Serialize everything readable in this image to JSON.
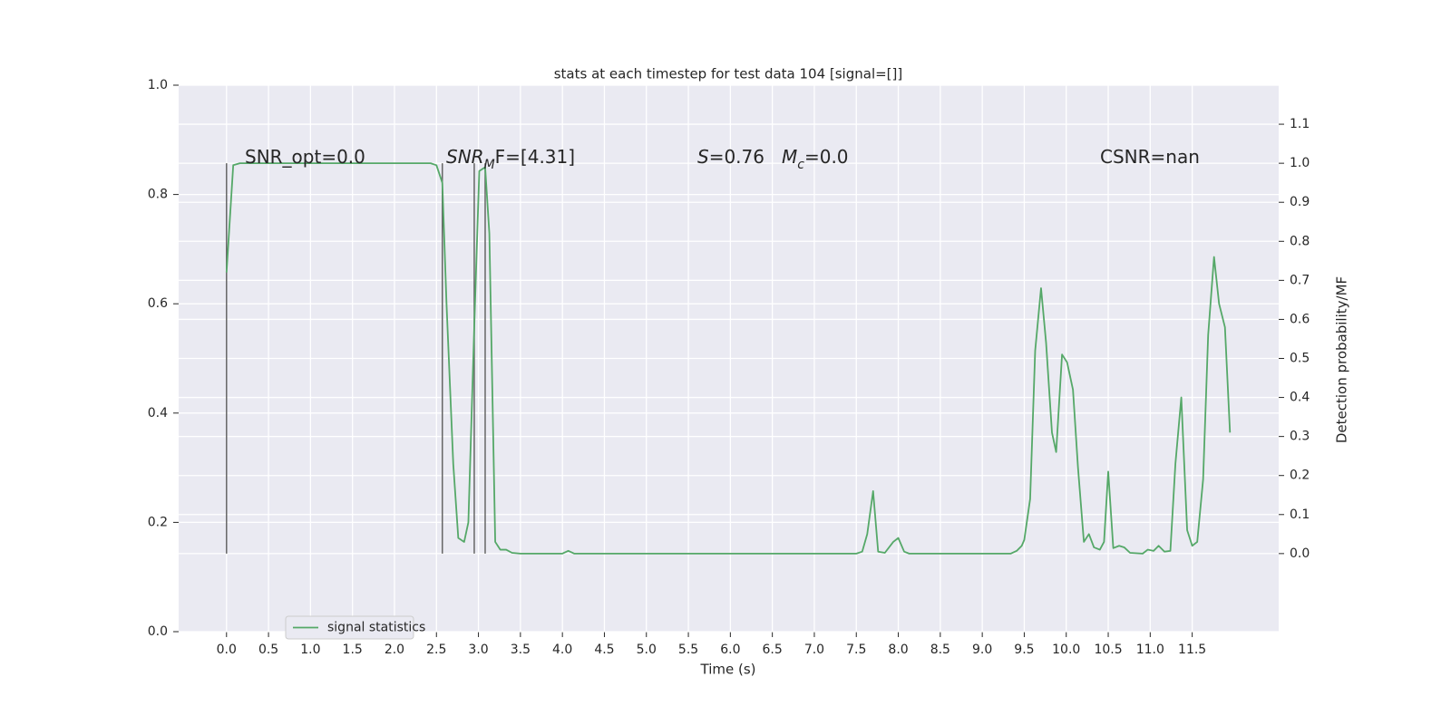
{
  "chart_data": {
    "type": "line",
    "title": "stats at each timestep for test data 104 [signal=[]]",
    "xlabel": "Time (s)",
    "y2label": "Detection probability/MF",
    "x": [
      0,
      0.08,
      0.16,
      1.0,
      2.0,
      2.43,
      2.5,
      2.57,
      2.62,
      2.7,
      2.76,
      2.83,
      2.88,
      2.95,
      3.01,
      3.08,
      3.13,
      3.2,
      3.26,
      3.33,
      3.4,
      3.5,
      4.0,
      4.07,
      4.14,
      5.0,
      6.0,
      7.0,
      7.5,
      7.57,
      7.63,
      7.7,
      7.76,
      7.84,
      7.94,
      8.0,
      8.07,
      8.13,
      9.0,
      9.34,
      9.41,
      9.47,
      9.5,
      9.57,
      9.63,
      9.7,
      9.76,
      9.83,
      9.88,
      9.95,
      10.01,
      10.08,
      10.14,
      10.21,
      10.27,
      10.33,
      10.4,
      10.45,
      10.5,
      10.56,
      10.63,
      10.69,
      10.76,
      10.91,
      10.97,
      11.04,
      11.1,
      11.17,
      11.24,
      11.3,
      11.37,
      11.44,
      11.5,
      11.56,
      11.63,
      11.69,
      11.76,
      11.82,
      11.89,
      11.95
    ],
    "series": [
      {
        "name": "signal statistics",
        "color": "#55a868",
        "axis": "y2",
        "values": [
          0.72,
          0.995,
          1.0,
          1.0,
          1.0,
          1.0,
          0.995,
          0.95,
          0.64,
          0.23,
          0.04,
          0.03,
          0.08,
          0.58,
          0.98,
          0.99,
          0.82,
          0.03,
          0.01,
          0.01,
          0.002,
          0,
          0,
          0.007,
          0,
          0,
          0,
          0,
          0,
          0.005,
          0.05,
          0.16,
          0.005,
          0.002,
          0.03,
          0.04,
          0.005,
          0,
          0,
          0,
          0.007,
          0.02,
          0.035,
          0.14,
          0.52,
          0.68,
          0.54,
          0.31,
          0.26,
          0.51,
          0.49,
          0.42,
          0.22,
          0.03,
          0.05,
          0.016,
          0.01,
          0.03,
          0.21,
          0.014,
          0.02,
          0.016,
          0.002,
          0,
          0.01,
          0.007,
          0.02,
          0.005,
          0.007,
          0.23,
          0.4,
          0.06,
          0.02,
          0.03,
          0.19,
          0.56,
          0.76,
          0.64,
          0.58,
          0.31
        ]
      }
    ],
    "vlines": [
      0,
      2.57,
      2.95,
      3.08
    ],
    "vline_span": [
      0,
      1.0
    ],
    "vline_color": "#666666",
    "annotations": [
      {
        "parts": [
          {
            "text": "SNR_opt=0.0",
            "style": "normal"
          }
        ]
      },
      {
        "parts": [
          {
            "text": "SNR",
            "style": "italic"
          },
          {
            "text": "M",
            "style": "italic-sub"
          },
          {
            "text": "F=[4.31]",
            "style": "normal"
          }
        ]
      },
      {
        "parts": [
          {
            "text": "S",
            "style": "italic"
          },
          {
            "text": "=0.76",
            "style": "normal"
          }
        ]
      },
      {
        "parts": [
          {
            "text": "M",
            "style": "italic"
          },
          {
            "text": "c",
            "style": "italic-sub"
          },
          {
            "text": "=0.0",
            "style": "normal"
          }
        ]
      },
      {
        "parts": [
          {
            "text": "CSNR=nan",
            "style": "normal"
          }
        ]
      }
    ],
    "xlim": [
      -0.57,
      12.53
    ],
    "xticks": [
      {
        "value": 0,
        "label": "0.0"
      },
      0.5,
      {
        "value": 1,
        "label": "1.0"
      },
      1.5,
      {
        "value": 2,
        "label": "2.0"
      },
      2.5,
      {
        "value": 3,
        "label": "3.0"
      },
      3.5,
      {
        "value": 4,
        "label": "4.0"
      },
      4.5,
      {
        "value": 5,
        "label": "5.0"
      },
      5.5,
      {
        "value": 6,
        "label": "6.0"
      },
      6.5,
      {
        "value": 7,
        "label": "7.0"
      },
      7.5,
      {
        "value": 8,
        "label": "8.0"
      },
      8.5,
      {
        "value": 9,
        "label": "9.0"
      },
      9.5,
      {
        "value": 10,
        "label": "10.0"
      },
      10.5,
      {
        "value": 11,
        "label": "11.0"
      },
      11.5
    ],
    "ylim": [
      0,
      1
    ],
    "yticks": [
      {
        "value": 0,
        "label": "0.0"
      },
      0.2,
      0.4,
      0.6,
      0.8,
      {
        "value": 1,
        "label": "1.0"
      }
    ],
    "y2lim": [
      -0.2,
      1.2
    ],
    "y2ticks": [
      {
        "value": 0,
        "label": "0.0"
      },
      0.1,
      0.2,
      0.3,
      0.4,
      0.5,
      0.6,
      0.7,
      0.8,
      0.9,
      {
        "value": 1,
        "label": "1.0"
      },
      1.1
    ],
    "grid": true,
    "legend": "lower left"
  }
}
